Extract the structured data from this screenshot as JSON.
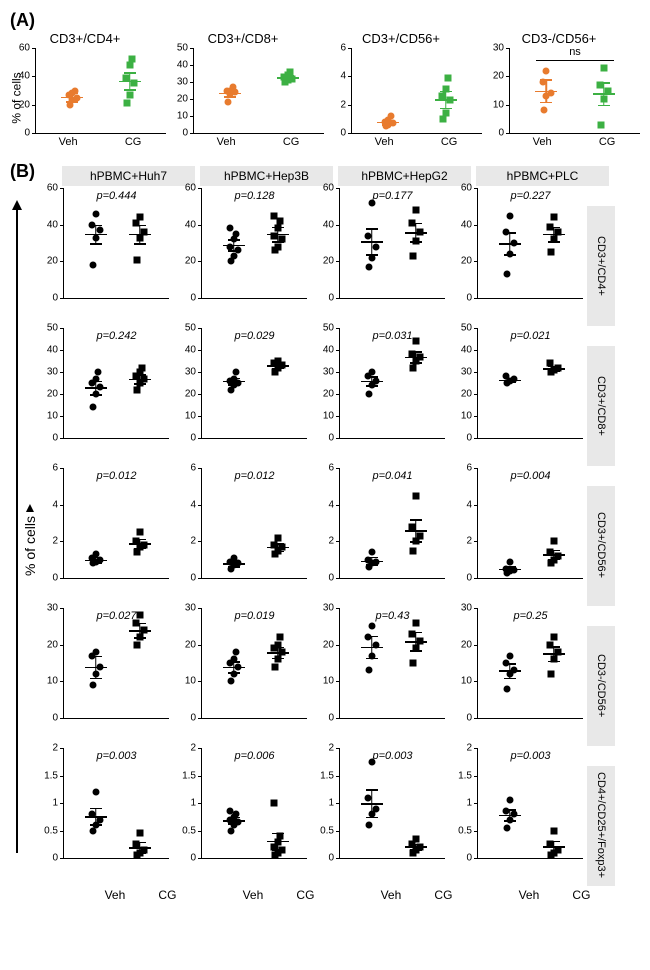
{
  "panelA": {
    "label": "(A)",
    "ylabel": "% of cells",
    "groups": [
      "Veh",
      "CG"
    ],
    "charts": [
      {
        "title": "CD3+/CD4+",
        "ylim": [
          0,
          60
        ],
        "yticks": [
          0,
          20,
          40,
          60
        ],
        "veh": {
          "points": [
            20,
            23,
            25,
            27,
            28,
            30
          ],
          "mean": 25.5,
          "err": 3,
          "color": "#e87b2e"
        },
        "cg": {
          "points": [
            21,
            27,
            35,
            39,
            48,
            52
          ],
          "mean": 37,
          "err": 6,
          "color": "#3cb043"
        }
      },
      {
        "title": "CD3+/CD8+",
        "ylim": [
          0,
          50
        ],
        "yticks": [
          0,
          10,
          20,
          30,
          40,
          50
        ],
        "veh": {
          "points": [
            18,
            23,
            24,
            25,
            25,
            27
          ],
          "mean": 23.7,
          "err": 2,
          "color": "#e87b2e"
        },
        "cg": {
          "points": [
            30,
            31,
            32,
            33,
            34,
            36
          ],
          "mean": 32.7,
          "err": 1.5,
          "color": "#3cb043"
        }
      },
      {
        "title": "CD3+/CD56+",
        "ylim": [
          0,
          6
        ],
        "yticks": [
          0,
          2,
          4,
          6
        ],
        "veh": {
          "points": [
            0.5,
            0.6,
            0.7,
            0.8,
            0.9,
            1.2
          ],
          "mean": 0.78,
          "err": 0.15,
          "color": "#e87b2e"
        },
        "cg": {
          "points": [
            1.0,
            1.4,
            2.3,
            2.6,
            3.1,
            3.9
          ],
          "mean": 2.4,
          "err": 0.6,
          "color": "#3cb043"
        }
      },
      {
        "title": "CD3-/CD56+",
        "ylim": [
          0,
          30
        ],
        "yticks": [
          0,
          10,
          20,
          30
        ],
        "ns": "ns",
        "veh": {
          "points": [
            8,
            13,
            14,
            18,
            22
          ],
          "mean": 15,
          "err": 4,
          "color": "#e87b2e"
        },
        "cg": {
          "points": [
            3,
            12,
            15,
            17,
            23
          ],
          "mean": 14,
          "err": 4,
          "color": "#3cb043"
        }
      }
    ]
  },
  "panelB": {
    "label": "(B)",
    "ylabel": "% of cells",
    "groups": [
      "Veh",
      "CG"
    ],
    "col_headers": [
      "hPBMC+Huh7",
      "hPBMC+Hep3B",
      "hPBMC+HepG2",
      "hPBMC+PLC"
    ],
    "row_labels": [
      "CD3+/CD4+",
      "CD3+/CD8+",
      "CD3+/CD56+",
      "CD3-/CD56+",
      "CD4+/CD25+/Foxp3+"
    ],
    "rows": [
      {
        "ylim": [
          0,
          60
        ],
        "yticks": [
          0,
          20,
          40,
          60
        ],
        "cells": [
          {
            "p": "p=0.444",
            "veh": {
              "pts": [
                18,
                33,
                37,
                40,
                46
              ],
              "m": 35,
              "e": 5
            },
            "cg": {
              "pts": [
                21,
                33,
                36,
                41,
                44
              ],
              "m": 35,
              "e": 5
            }
          },
          {
            "p": "p=0.128",
            "veh": {
              "pts": [
                20,
                23,
                26,
                28,
                32,
                35,
                38
              ],
              "m": 29,
              "e": 3
            },
            "cg": {
              "pts": [
                26,
                28,
                32,
                34,
                38,
                42,
                45
              ],
              "m": 35,
              "e": 4
            }
          },
          {
            "p": "p=0.177",
            "veh": {
              "pts": [
                17,
                22,
                28,
                34,
                52
              ],
              "m": 31,
              "e": 7
            },
            "cg": {
              "pts": [
                23,
                31,
                36,
                41,
                48
              ],
              "m": 36,
              "e": 5
            }
          },
          {
            "p": "p=0.227",
            "veh": {
              "pts": [
                13,
                24,
                30,
                36,
                45
              ],
              "m": 30,
              "e": 6
            },
            "cg": {
              "pts": [
                25,
                32,
                36,
                39,
                44
              ],
              "m": 35,
              "e": 4
            }
          }
        ]
      },
      {
        "ylim": [
          0,
          50
        ],
        "yticks": [
          0,
          10,
          20,
          30,
          40,
          50
        ],
        "cells": [
          {
            "p": "p=0.242",
            "veh": {
              "pts": [
                14,
                20,
                23,
                25,
                27,
                30
              ],
              "m": 23,
              "e": 3
            },
            "cg": {
              "pts": [
                22,
                25,
                27,
                28,
                30,
                32
              ],
              "m": 27,
              "e": 2
            }
          },
          {
            "p": "p=0.029",
            "veh": {
              "pts": [
                22,
                24,
                25,
                26,
                27,
                30
              ],
              "m": 26,
              "e": 1.5
            },
            "cg": {
              "pts": [
                30,
                32,
                33,
                34,
                35
              ],
              "m": 33,
              "e": 1
            }
          },
          {
            "p": "p=0.031",
            "veh": {
              "pts": [
                20,
                24,
                26,
                28,
                30
              ],
              "m": 26,
              "e": 2
            },
            "cg": {
              "pts": [
                32,
                35,
                37,
                38,
                44
              ],
              "m": 37,
              "e": 2.5
            }
          },
          {
            "p": "p=0.021",
            "veh": {
              "pts": [
                25,
                26,
                27,
                28
              ],
              "m": 26.5,
              "e": 1
            },
            "cg": {
              "pts": [
                30,
                31,
                32,
                34
              ],
              "m": 31.8,
              "e": 1
            }
          }
        ]
      },
      {
        "ylim": [
          0,
          6
        ],
        "yticks": [
          0,
          2,
          4,
          6
        ],
        "cells": [
          {
            "p": "p=0.012",
            "veh": {
              "pts": [
                0.8,
                0.9,
                1.0,
                1.1,
                1.3
              ],
              "m": 1.0,
              "e": 0.15
            },
            "cg": {
              "pts": [
                1.4,
                1.7,
                1.8,
                2.0,
                2.5
              ],
              "m": 1.9,
              "e": 0.25
            }
          },
          {
            "p": "p=0.012",
            "veh": {
              "pts": [
                0.5,
                0.7,
                0.8,
                0.9,
                1.1
              ],
              "m": 0.8,
              "e": 0.15
            },
            "cg": {
              "pts": [
                1.3,
                1.5,
                1.7,
                1.8,
                2.2
              ],
              "m": 1.7,
              "e": 0.2
            }
          },
          {
            "p": "p=0.041",
            "veh": {
              "pts": [
                0.6,
                0.8,
                0.9,
                1.0,
                1.4
              ],
              "m": 0.95,
              "e": 0.2
            },
            "cg": {
              "pts": [
                1.5,
                2.0,
                2.3,
                2.8,
                4.5
              ],
              "m": 2.6,
              "e": 0.6
            }
          },
          {
            "p": "p=0.004",
            "veh": {
              "pts": [
                0.3,
                0.4,
                0.45,
                0.5,
                0.9
              ],
              "m": 0.5,
              "e": 0.15
            },
            "cg": {
              "pts": [
                0.8,
                1.0,
                1.2,
                1.4,
                2.0
              ],
              "m": 1.3,
              "e": 0.25
            }
          }
        ]
      },
      {
        "ylim": [
          0,
          30
        ],
        "yticks": [
          0,
          10,
          20,
          30
        ],
        "cells": [
          {
            "p": "p=0.027",
            "veh": {
              "pts": [
                9,
                12,
                14,
                17,
                18
              ],
              "m": 14,
              "e": 3
            },
            "cg": {
              "pts": [
                20,
                22,
                24,
                26,
                28
              ],
              "m": 24,
              "e": 2
            }
          },
          {
            "p": "p=0.019",
            "veh": {
              "pts": [
                10,
                12,
                14,
                15,
                16,
                18
              ],
              "m": 14,
              "e": 1.5
            },
            "cg": {
              "pts": [
                14,
                16,
                18,
                19,
                20,
                22
              ],
              "m": 18,
              "e": 1.5
            }
          },
          {
            "p": "p=0.43",
            "veh": {
              "pts": [
                13,
                17,
                20,
                22,
                25
              ],
              "m": 19.5,
              "e": 3
            },
            "cg": {
              "pts": [
                15,
                19,
                21,
                23,
                26
              ],
              "m": 21,
              "e": 2.5
            }
          },
          {
            "p": "p=0.25",
            "veh": {
              "pts": [
                8,
                12,
                13,
                15,
                17
              ],
              "m": 13,
              "e": 2
            },
            "cg": {
              "pts": [
                12,
                16,
                18,
                20,
                22
              ],
              "m": 17.6,
              "e": 2
            }
          }
        ]
      },
      {
        "ylim": [
          0,
          2.0
        ],
        "yticks": [
          0,
          0.5,
          1.0,
          1.5,
          2.0
        ],
        "cells": [
          {
            "p": "p=0.003",
            "veh": {
              "pts": [
                0.5,
                0.6,
                0.7,
                0.8,
                1.2
              ],
              "m": 0.76,
              "e": 0.15
            },
            "cg": {
              "pts": [
                0.05,
                0.1,
                0.15,
                0.25,
                0.45
              ],
              "m": 0.2,
              "e": 0.1
            }
          },
          {
            "p": "p=0.006",
            "veh": {
              "pts": [
                0.5,
                0.6,
                0.65,
                0.7,
                0.75,
                0.8,
                0.85
              ],
              "m": 0.69,
              "e": 0.06
            },
            "cg": {
              "pts": [
                0.05,
                0.1,
                0.15,
                0.2,
                0.3,
                0.4,
                1.0
              ],
              "m": 0.31,
              "e": 0.15
            }
          },
          {
            "p": "p=0.003",
            "veh": {
              "pts": [
                0.6,
                0.8,
                0.9,
                1.1,
                1.75
              ],
              "m": 1.0,
              "e": 0.25
            },
            "cg": {
              "pts": [
                0.1,
                0.15,
                0.2,
                0.25,
                0.35
              ],
              "m": 0.21,
              "e": 0.05
            }
          },
          {
            "p": "p=0.003",
            "veh": {
              "pts": [
                0.55,
                0.7,
                0.8,
                0.85,
                1.05
              ],
              "m": 0.79,
              "e": 0.1
            },
            "cg": {
              "pts": [
                0.05,
                0.1,
                0.15,
                0.25,
                0.5
              ],
              "m": 0.21,
              "e": 0.1
            }
          }
        ]
      }
    ]
  }
}
